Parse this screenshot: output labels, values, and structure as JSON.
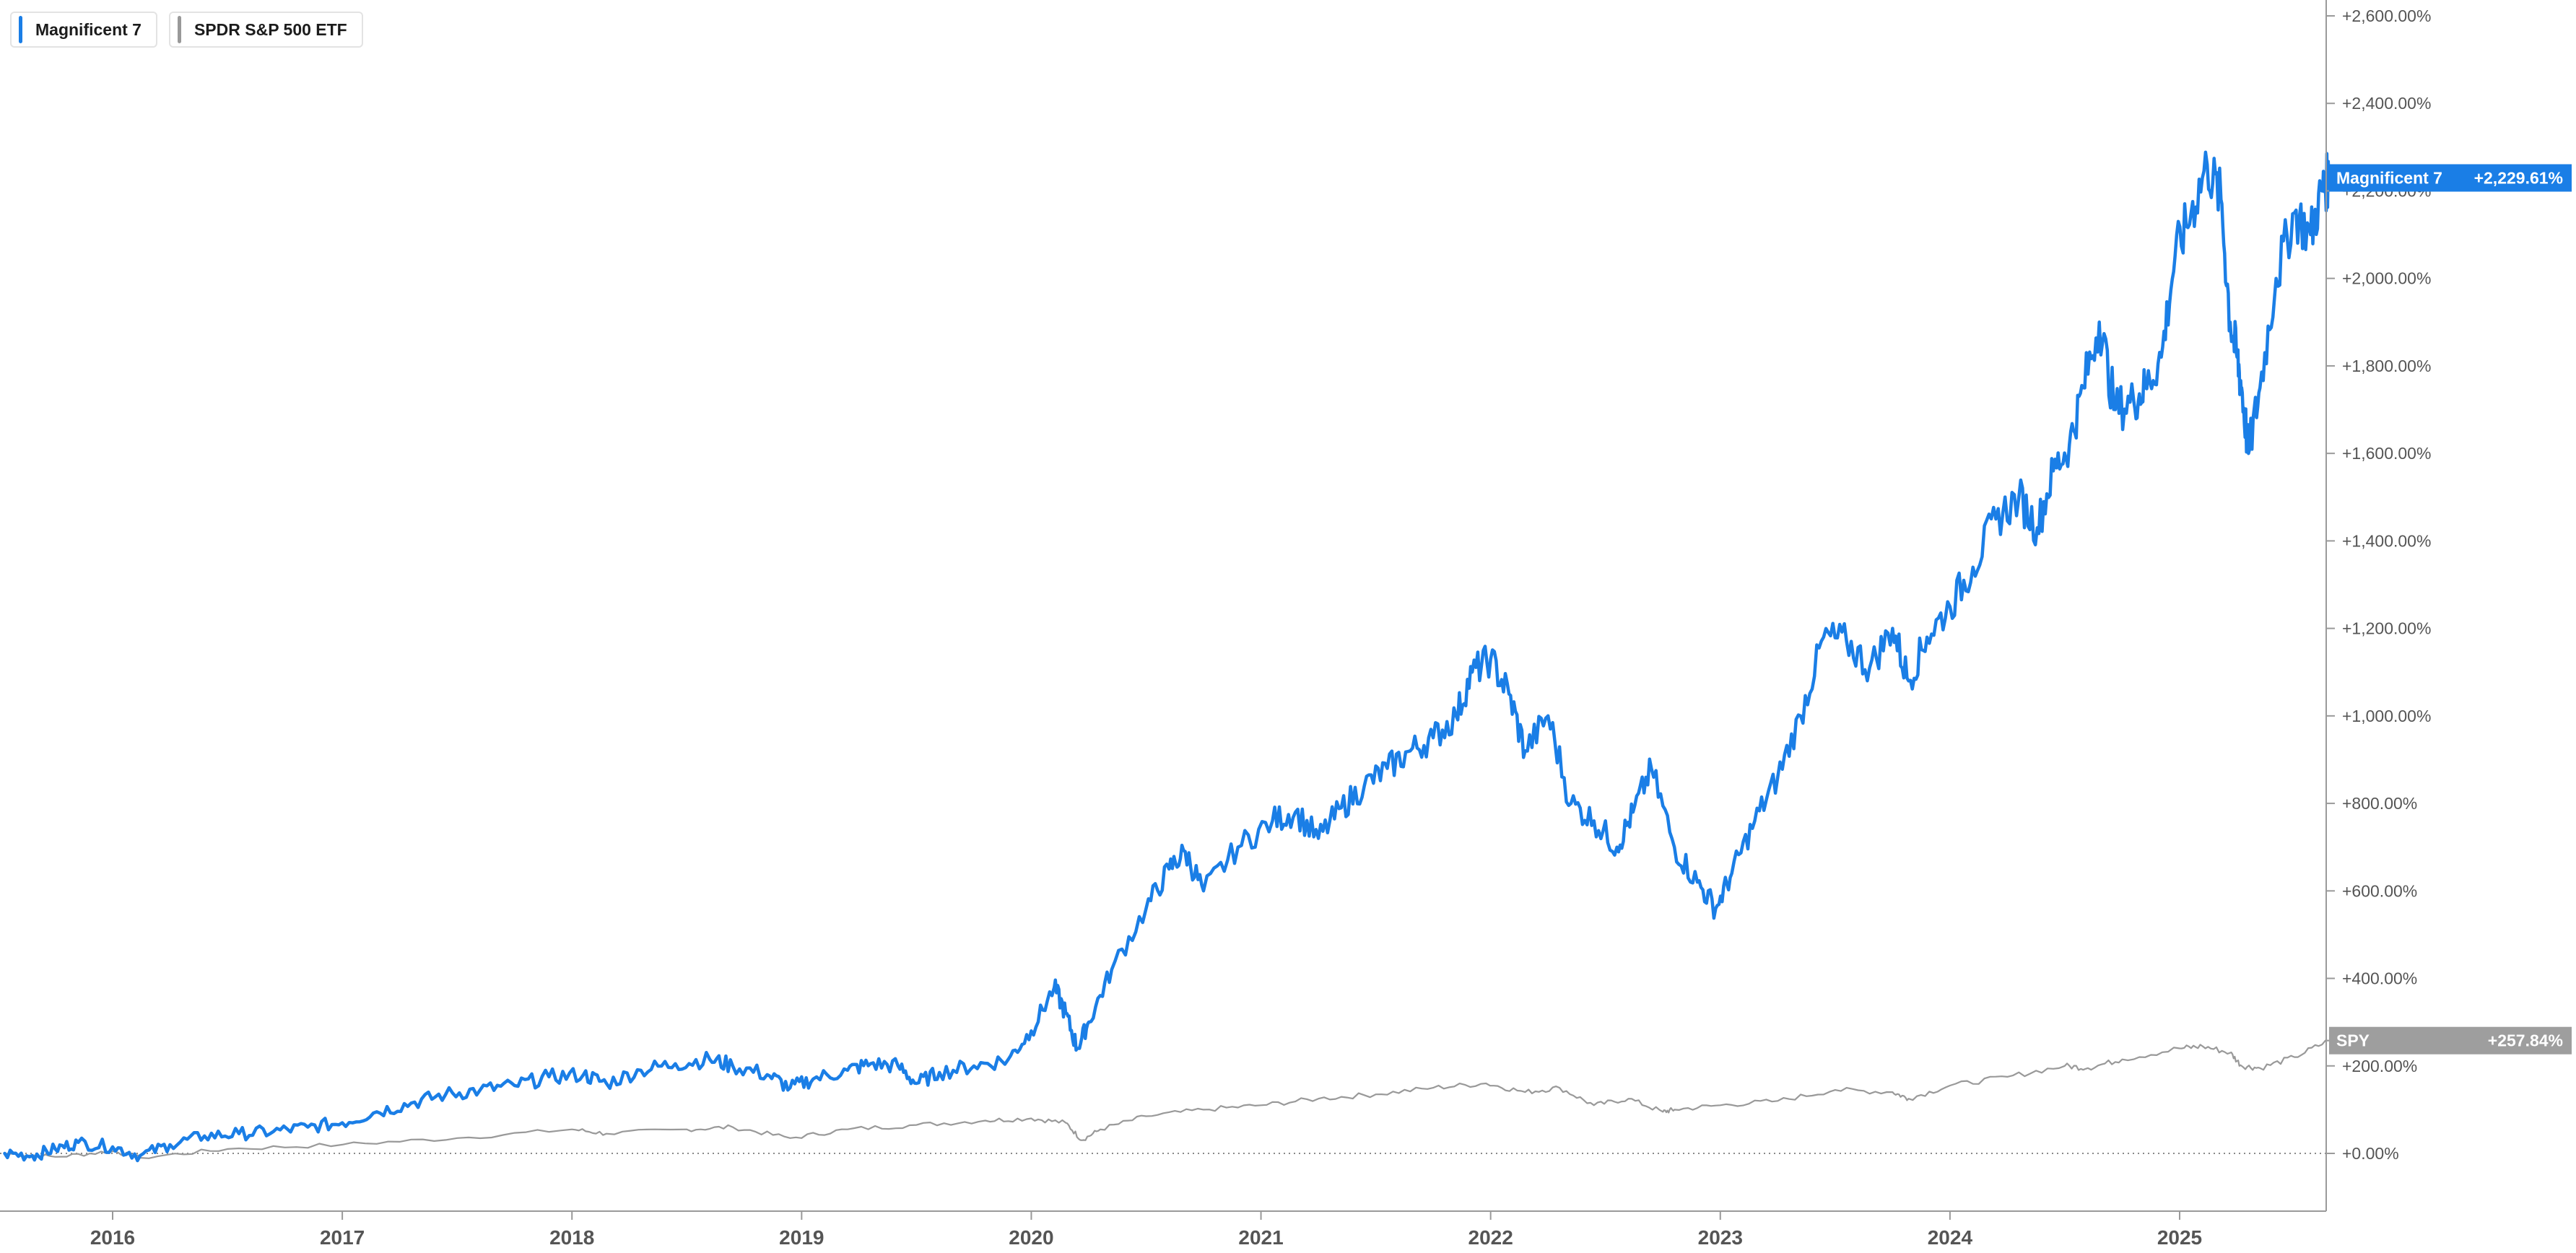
{
  "legend": {
    "items": [
      {
        "label": "Magnificent 7",
        "color": "#1a7ee6"
      },
      {
        "label": "SPDR S&P 500 ETF",
        "color": "#999999"
      }
    ]
  },
  "chart_data": {
    "type": "line",
    "title": "",
    "xlabel": "",
    "ylabel": "",
    "x_ticks": [
      "2016",
      "2017",
      "2018",
      "2019",
      "2020",
      "2021",
      "2022",
      "2023",
      "2024",
      "2025"
    ],
    "y_ticks": [
      "+0.00%",
      "+200.00%",
      "+400.00%",
      "+600.00%",
      "+800.00%",
      "+1,000.00%",
      "+1,200.00%",
      "+1,400.00%",
      "+1,600.00%",
      "+1,800.00%",
      "+2,000.00%",
      "+2,200.00%",
      "+2,400.00%",
      "+2,600.00%"
    ],
    "ylim": [
      -130,
      2600
    ],
    "xlim": [
      2015.53,
      2025.66
    ],
    "baseline": 0,
    "series": [
      {
        "name": "Magnificent 7",
        "color": "#1a7ee6",
        "end_label": "+2,229.61%",
        "x": [
          2015.53,
          2015.65,
          2015.75,
          2015.85,
          2016.0,
          2016.12,
          2016.25,
          2016.4,
          2016.55,
          2016.7,
          2016.85,
          2017.0,
          2017.15,
          2017.3,
          2017.45,
          2017.6,
          2017.75,
          2017.9,
          2018.05,
          2018.15,
          2018.3,
          2018.45,
          2018.6,
          2018.7,
          2018.85,
          2018.95,
          2019.05,
          2019.2,
          2019.3,
          2019.42,
          2019.5,
          2019.6,
          2019.75,
          2019.9,
          2020.0,
          2020.1,
          2020.15,
          2020.2,
          2020.25,
          2020.35,
          2020.5,
          2020.6,
          2020.67,
          2020.75,
          2020.9,
          2021.05,
          2021.15,
          2021.25,
          2021.35,
          2021.45,
          2021.55,
          2021.65,
          2021.75,
          2021.85,
          2021.92,
          2022.0,
          2022.08,
          2022.15,
          2022.25,
          2022.35,
          2022.45,
          2022.55,
          2022.62,
          2022.7,
          2022.8,
          2022.9,
          2022.98,
          2023.05,
          2023.15,
          2023.25,
          2023.35,
          2023.45,
          2023.55,
          2023.65,
          2023.75,
          2023.82,
          2023.9,
          2024.0,
          2024.1,
          2024.2,
          2024.3,
          2024.38,
          2024.45,
          2024.52,
          2024.58,
          2024.65,
          2024.72,
          2024.8,
          2024.85,
          2024.92,
          2024.98,
          2025.05,
          2025.12,
          2025.18,
          2025.22,
          2025.25,
          2025.27,
          2025.3,
          2025.35,
          2025.42,
          2025.5,
          2025.57,
          2025.62,
          2025.65
        ],
        "y": [
          0,
          -5,
          10,
          25,
          15,
          -5,
          20,
          40,
          45,
          50,
          60,
          70,
          95,
          115,
          135,
          145,
          155,
          175,
          180,
          160,
          190,
          205,
          215,
          200,
          180,
          150,
          170,
          190,
          205,
          200,
          160,
          185,
          200,
          215,
          280,
          380,
          320,
          240,
          300,
          420,
          560,
          650,
          690,
          600,
          700,
          760,
          780,
          720,
          790,
          840,
          880,
          920,
          950,
          1000,
          1100,
          1130,
          1050,
          920,
          1000,
          800,
          760,
          700,
          780,
          880,
          700,
          620,
          560,
          640,
          760,
          860,
          1000,
          1180,
          1170,
          1110,
          1200,
          1080,
          1180,
          1250,
          1340,
          1450,
          1500,
          1430,
          1560,
          1620,
          1750,
          1900,
          1700,
          1720,
          1750,
          1820,
          2050,
          2150,
          2260,
          2180,
          1900,
          1820,
          1750,
          1600,
          1750,
          2000,
          2150,
          2100,
          2200,
          2229.61
        ]
      },
      {
        "name": "SPY",
        "color": "#999999",
        "end_label": "+257.84%",
        "x": [
          2015.53,
          2015.75,
          2016.0,
          2016.12,
          2016.5,
          2017.0,
          2017.5,
          2018.0,
          2018.15,
          2018.5,
          2018.7,
          2018.95,
          2019.2,
          2019.5,
          2019.8,
          2020.0,
          2020.15,
          2020.22,
          2020.3,
          2020.5,
          2020.75,
          2021.0,
          2021.25,
          2021.5,
          2021.75,
          2021.98,
          2022.15,
          2022.3,
          2022.45,
          2022.6,
          2022.75,
          2022.8,
          2023.0,
          2023.25,
          2023.5,
          2023.75,
          2023.82,
          2024.0,
          2024.25,
          2024.5,
          2024.6,
          2024.75,
          2025.0,
          2025.1,
          2025.22,
          2025.27,
          2025.35,
          2025.5,
          2025.65
        ],
        "y": [
          0,
          -8,
          5,
          -10,
          10,
          20,
          35,
          55,
          45,
          55,
          60,
          35,
          55,
          65,
          75,
          80,
          70,
          30,
          55,
          85,
          100,
          110,
          125,
          135,
          150,
          160,
          140,
          150,
          110,
          125,
          95,
          100,
          110,
          120,
          145,
          140,
          125,
          155,
          175,
          200,
          195,
          215,
          240,
          245,
          230,
          200,
          195,
          220,
          257.84
        ]
      }
    ]
  },
  "end_tags": [
    {
      "series": "Magnificent 7",
      "label": "Magnificent 7",
      "value": "+2,229.61%",
      "color": "#1a7ee6"
    },
    {
      "series": "SPY",
      "label": "SPY",
      "value": "+257.84%",
      "color": "#9e9e9e"
    }
  ]
}
